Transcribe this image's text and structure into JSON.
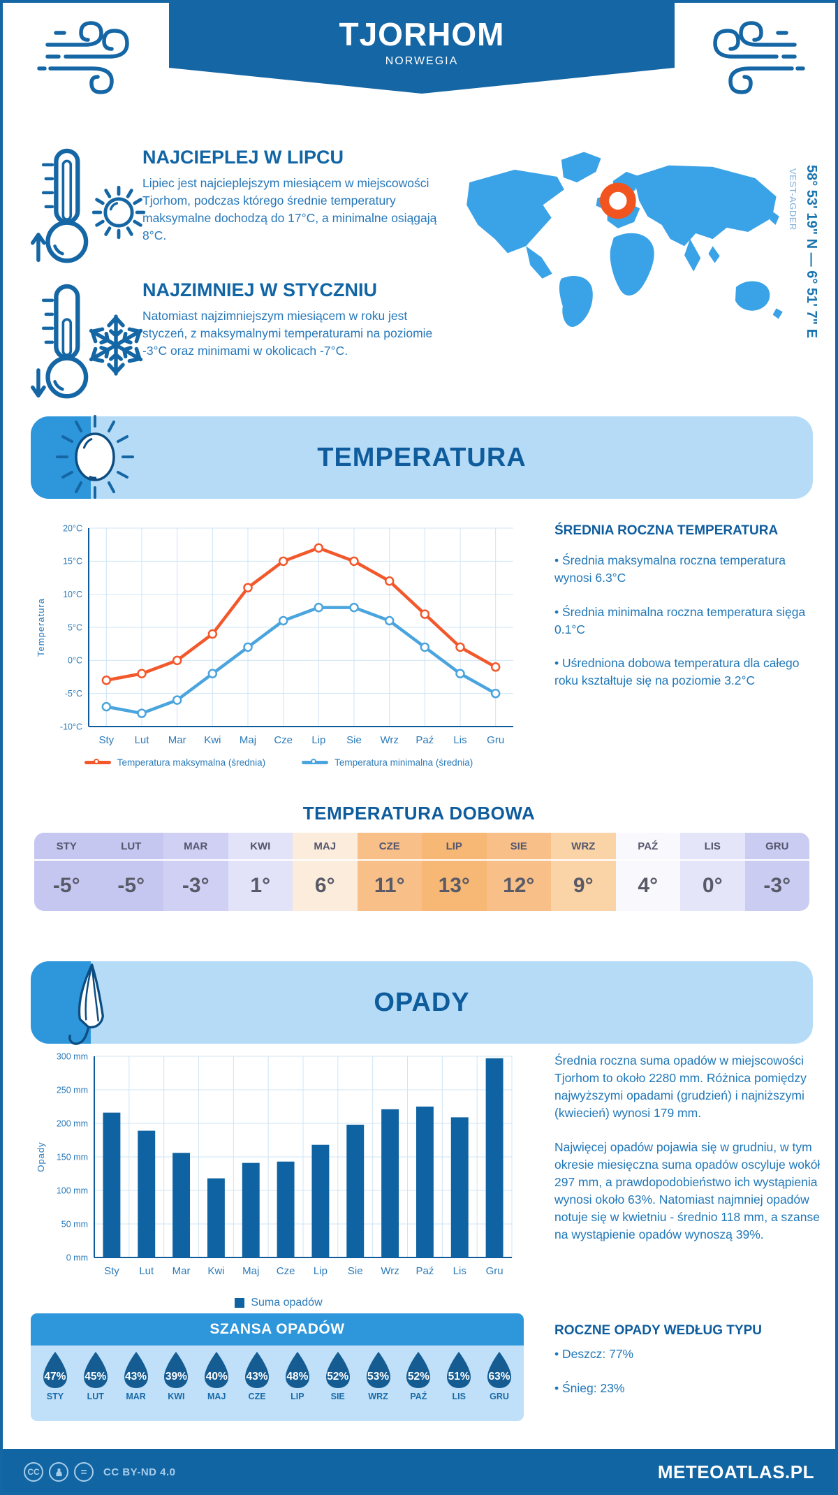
{
  "page": {
    "title": "TJORHOM",
    "subtitle": "NORWEGIA",
    "coordinates": "58° 53' 19\" N — 6° 51' 7\" E",
    "region": "VEST-AGDER",
    "footer": {
      "license": "CC BY-ND 4.0",
      "site": "METEOATLAS.PL"
    }
  },
  "warm_section": {
    "heading": "NAJCIEPLEJ W LIPCU",
    "body": "Lipiec jest najcieplejszym miesiącem w miejscowości Tjorhom, podczas którego średnie temperatury maksymalne dochodzą do 17°C, a minimalne osiągają 8°C."
  },
  "cold_section": {
    "heading": "NAJZIMNIEJ W STYCZNIU",
    "body": "Natomiast najzimniejszym miesiącem w roku jest styczeń, z maksymalnymi temperaturami na poziomie -3°C oraz minimami w okolicach -7°C."
  },
  "temperature_section": {
    "banner": "TEMPERATURA",
    "annual_heading": "ŚREDNIA ROCZNA TEMPERATURA",
    "annual_bullets": [
      "Średnia maksymalna roczna temperatura wynosi 6.3°C",
      "Średnia minimalna roczna temperatura sięga 0.1°C",
      "Uśredniona dobowa temperatura dla całego roku kształtuje się na poziomie 3.2°C"
    ],
    "daily_heading": "TEMPERATURA DOBOWA",
    "daily": {
      "months": [
        "STY",
        "LUT",
        "MAR",
        "KWI",
        "MAJ",
        "CZE",
        "LIP",
        "SIE",
        "WRZ",
        "PAŹ",
        "LIS",
        "GRU"
      ],
      "values": [
        "-5°",
        "-5°",
        "-3°",
        "1°",
        "6°",
        "11°",
        "13°",
        "12°",
        "9°",
        "4°",
        "0°",
        "-3°"
      ],
      "colors": [
        "#c6c7f0",
        "#c6c7f0",
        "#cfd0f3",
        "#e2e3f8",
        "#fcecdc",
        "#f8c088",
        "#f7b875",
        "#f8c088",
        "#fad4a6",
        "#f9f9fd",
        "#e4e5f9",
        "#cbccf2"
      ]
    }
  },
  "precipitation_section": {
    "banner": "OPADY",
    "p1": "Średnia roczna suma opadów w miejscowości Tjorhom to około 2280 mm. Różnica pomiędzy najwyższymi opadami (grudzień) i najniższymi (kwiecień) wynosi 179 mm.",
    "p2": "Najwięcej opadów pojawia się w grudniu, w tym okresie miesięczna suma opadów oscyluje wokół 297 mm, a prawdopodobieństwo ich wystąpienia wynosi około 63%. Natomiast najmniej opadów notuje się w kwietniu - średnio 118 mm, a szanse na wystąpienie opadów wynoszą 39%.",
    "type_heading": "ROCZNE OPADY WEDŁUG TYPU",
    "type_bullets": [
      "Deszcz: 77%",
      "Śnieg: 23%"
    ],
    "chance": {
      "heading": "SZANSA OPADÓW",
      "months": [
        "STY",
        "LUT",
        "MAR",
        "KWI",
        "MAJ",
        "CZE",
        "LIP",
        "SIE",
        "WRZ",
        "PAŹ",
        "LIS",
        "GRU"
      ],
      "values": [
        "47%",
        "45%",
        "43%",
        "39%",
        "40%",
        "43%",
        "48%",
        "52%",
        "53%",
        "52%",
        "51%",
        "63%"
      ],
      "drop_color": "#155c93"
    }
  },
  "chart_data": [
    {
      "type": "line",
      "title": "Temperatura",
      "categories": [
        "Sty",
        "Lut",
        "Mar",
        "Kwi",
        "Maj",
        "Cze",
        "Lip",
        "Sie",
        "Wrz",
        "Paź",
        "Lis",
        "Gru"
      ],
      "series": [
        {
          "name": "Temperatura maksymalna (średnia)",
          "color": "#f2582c",
          "values": [
            -3,
            -2,
            0,
            4,
            11,
            15,
            17,
            15,
            12,
            7,
            2,
            -1
          ]
        },
        {
          "name": "Temperatura minimalna (średnia)",
          "color": "#4aa4dd",
          "values": [
            -7,
            -8,
            -6,
            -2,
            2,
            6,
            8,
            8,
            6,
            2,
            -2,
            -5
          ]
        }
      ],
      "xlabel": "",
      "ylabel": "Temperatura",
      "ylim": [
        -10,
        20
      ],
      "ytick_step": 5,
      "ytick_suffix": "°C",
      "grid": true,
      "legend_position": "bottom"
    },
    {
      "type": "bar",
      "title": "Opady",
      "categories": [
        "Sty",
        "Lut",
        "Mar",
        "Kwi",
        "Maj",
        "Cze",
        "Lip",
        "Sie",
        "Wrz",
        "Paź",
        "Lis",
        "Gru"
      ],
      "series": [
        {
          "name": "Suma opadów",
          "color": "#1063a2",
          "values": [
            216,
            189,
            156,
            118,
            141,
            143,
            168,
            198,
            221,
            225,
            209,
            297
          ]
        }
      ],
      "xlabel": "",
      "ylabel": "Opady",
      "ylim": [
        0,
        300
      ],
      "ytick_step": 50,
      "ytick_suffix": " mm",
      "grid": true,
      "legend_position": "bottom"
    }
  ],
  "colors": {
    "primary": "#1566a4",
    "banner_bg": "#b5dbf7",
    "banner_cap": "#2e96da",
    "map": "#3aa2e6",
    "marker": "#f2541f",
    "footer": "#1165a3"
  }
}
